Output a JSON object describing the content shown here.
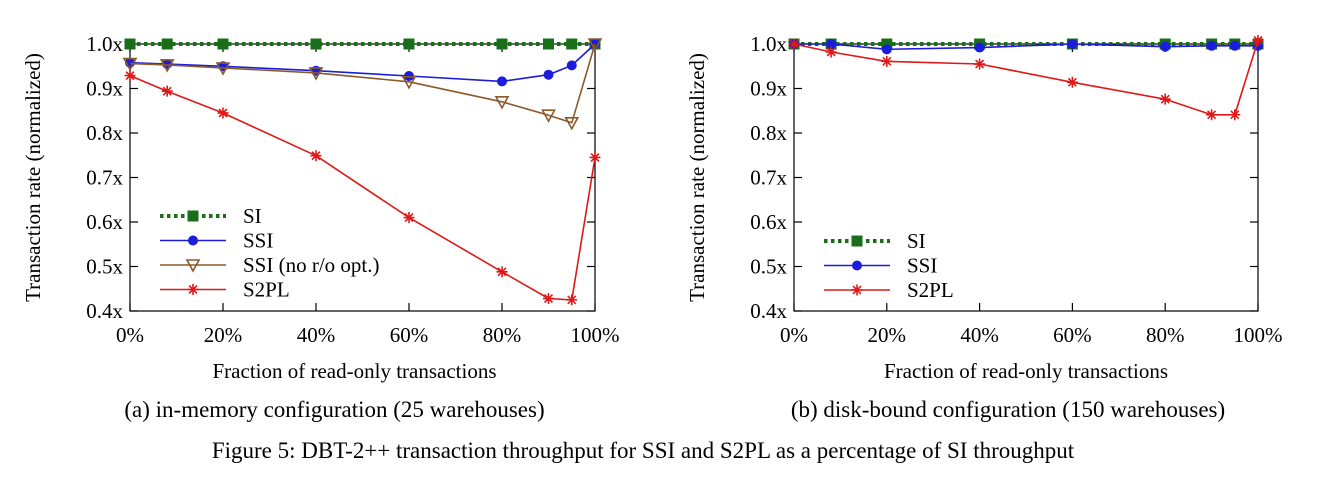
{
  "figure_caption": "Figure 5: DBT-2++ transaction throughput for SSI and S2PL as a percentage of SI throughput",
  "colors": {
    "SI": "#1a6e1a",
    "SSI": "#1c1cdc",
    "SSI (no r/o opt.)": "#8b5a2b",
    "S2PL": "#e01818"
  },
  "chart_data": [
    {
      "type": "line",
      "caption": "(a) in-memory configuration (25 warehouses)",
      "xlabel": "Fraction of read-only transactions",
      "ylabel": "Transaction rate (normalized)",
      "xlim": [
        0,
        100
      ],
      "ylim": [
        0.4,
        1.0
      ],
      "xticks": [
        0,
        20,
        40,
        60,
        80,
        100
      ],
      "xtick_labels": [
        "0%",
        "20%",
        "40%",
        "60%",
        "80%",
        "100%"
      ],
      "yticks": [
        0.4,
        0.5,
        0.6,
        0.7,
        0.8,
        0.9,
        1.0
      ],
      "ytick_labels": [
        "0.4x",
        "0.5x",
        "0.6x",
        "0.7x",
        "0.8x",
        "0.9x",
        "1.0x"
      ],
      "legend": "left",
      "series": [
        {
          "name": "SI",
          "marker": "square",
          "dash": "dotted",
          "x": [
            0,
            8,
            20,
            40,
            60,
            80,
            90,
            95,
            100
          ],
          "y": [
            1.0,
            1.0,
            1.0,
            1.0,
            1.0,
            1.0,
            1.0,
            1.0,
            1.0
          ]
        },
        {
          "name": "SSI",
          "marker": "circle",
          "dash": "solid",
          "x": [
            0,
            8,
            20,
            40,
            60,
            80,
            90,
            95,
            100
          ],
          "y": [
            0.958,
            0.955,
            0.95,
            0.94,
            0.928,
            0.916,
            0.931,
            0.952,
            1.0
          ]
        },
        {
          "name": "SSI (no r/o opt.)",
          "marker": "triangle-down",
          "dash": "solid",
          "x": [
            0,
            8,
            20,
            40,
            60,
            80,
            90,
            95,
            100
          ],
          "y": [
            0.956,
            0.953,
            0.946,
            0.935,
            0.915,
            0.87,
            0.84,
            0.823,
            1.0
          ]
        },
        {
          "name": "S2PL",
          "marker": "star",
          "dash": "solid",
          "x": [
            0,
            8,
            20,
            40,
            60,
            80,
            90,
            95,
            100
          ],
          "y": [
            0.929,
            0.894,
            0.845,
            0.749,
            0.61,
            0.488,
            0.428,
            0.425,
            0.745
          ]
        }
      ]
    },
    {
      "type": "line",
      "caption": "(b) disk-bound configuration (150 warehouses)",
      "xlabel": "Fraction of read-only transactions",
      "ylabel": "Transaction rate (normalized)",
      "xlim": [
        0,
        100
      ],
      "ylim": [
        0.4,
        1.0
      ],
      "xticks": [
        0,
        20,
        40,
        60,
        80,
        100
      ],
      "xtick_labels": [
        "0%",
        "20%",
        "40%",
        "60%",
        "80%",
        "100%"
      ],
      "yticks": [
        0.4,
        0.5,
        0.6,
        0.7,
        0.8,
        0.9,
        1.0
      ],
      "ytick_labels": [
        "0.4x",
        "0.5x",
        "0.6x",
        "0.7x",
        "0.8x",
        "0.9x",
        "1.0x"
      ],
      "legend": "bottom-left",
      "series": [
        {
          "name": "SI",
          "marker": "square",
          "dash": "dotted",
          "x": [
            0,
            8,
            20,
            40,
            60,
            80,
            90,
            95,
            100
          ],
          "y": [
            1.0,
            1.0,
            1.0,
            1.0,
            1.0,
            1.0,
            1.0,
            1.0,
            1.0
          ]
        },
        {
          "name": "SSI",
          "marker": "circle",
          "dash": "solid",
          "x": [
            0,
            8,
            20,
            40,
            60,
            80,
            90,
            95,
            100
          ],
          "y": [
            1.0,
            1.0,
            0.988,
            0.992,
            1.0,
            0.994,
            0.996,
            0.996,
            0.996
          ]
        },
        {
          "name": "S2PL",
          "marker": "star",
          "dash": "solid",
          "x": [
            0,
            8,
            20,
            40,
            60,
            80,
            90,
            95,
            100
          ],
          "y": [
            1.0,
            0.982,
            0.961,
            0.955,
            0.914,
            0.876,
            0.841,
            0.841,
            1.008
          ]
        }
      ]
    }
  ]
}
